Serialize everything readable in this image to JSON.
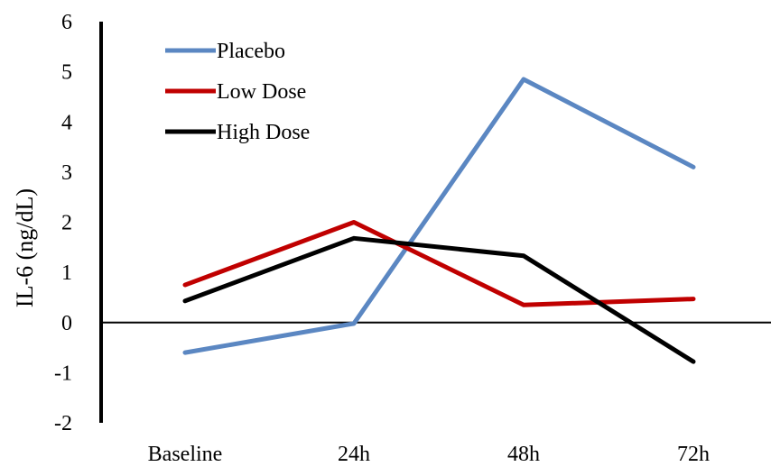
{
  "chart_data": {
    "type": "line",
    "title": "",
    "xlabel": "",
    "ylabel": "IL-6 (ng/dL)",
    "categories": [
      "Baseline",
      "24h",
      "48h",
      "72h"
    ],
    "ylim": [
      -2,
      6
    ],
    "yticks": [
      "-2",
      "-1",
      "0",
      "1",
      "2",
      "3",
      "4",
      "5",
      "6"
    ],
    "grid": false,
    "legend_position": "top-left",
    "series": [
      {
        "name": "Placebo",
        "color": "#5b87c2",
        "values": [
          -0.6,
          -0.02,
          4.85,
          3.1
        ]
      },
      {
        "name": "Low Dose",
        "color": "#c00000",
        "values": [
          0.75,
          2.0,
          0.35,
          0.47
        ]
      },
      {
        "name": "High Dose",
        "color": "#000000",
        "values": [
          0.43,
          1.68,
          1.33,
          -0.78
        ]
      }
    ]
  }
}
